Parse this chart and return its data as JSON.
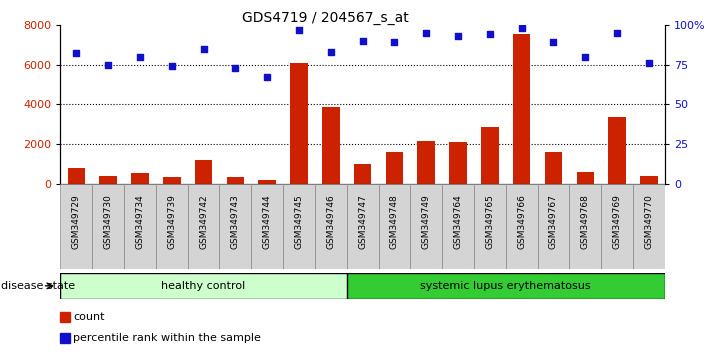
{
  "title": "GDS4719 / 204567_s_at",
  "samples": [
    "GSM349729",
    "GSM349730",
    "GSM349734",
    "GSM349739",
    "GSM349742",
    "GSM349743",
    "GSM349744",
    "GSM349745",
    "GSM349746",
    "GSM349747",
    "GSM349748",
    "GSM349749",
    "GSM349764",
    "GSM349765",
    "GSM349766",
    "GSM349767",
    "GSM349768",
    "GSM349769",
    "GSM349770"
  ],
  "counts": [
    800,
    400,
    550,
    350,
    1200,
    380,
    200,
    6100,
    3850,
    1000,
    1600,
    2150,
    2100,
    2850,
    7550,
    1600,
    600,
    3380,
    430
  ],
  "percentiles": [
    82,
    75,
    80,
    74,
    85,
    73,
    67,
    97,
    83,
    90,
    89,
    95,
    93,
    94,
    98,
    89,
    80,
    95,
    76
  ],
  "ylim_left": [
    0,
    8000
  ],
  "ylim_right": [
    0,
    100
  ],
  "yticks_left": [
    0,
    2000,
    4000,
    6000,
    8000
  ],
  "yticks_right": [
    0,
    25,
    50,
    75,
    100
  ],
  "ytick_labels_right": [
    "0",
    "25",
    "50",
    "75",
    "100%"
  ],
  "healthy_count": 9,
  "bar_color": "#cc2200",
  "dot_color": "#1010cc",
  "healthy_color_light": "#ccffcc",
  "healthy_color_dark": "#44dd44",
  "sle_color": "#33cc33",
  "healthy_label": "healthy control",
  "sle_label": "systemic lupus erythematosus",
  "disease_state_label": "disease state",
  "legend_count_label": "count",
  "legend_pct_label": "percentile rank within the sample",
  "title_fontsize": 10,
  "tick_label_color_left": "#cc2200",
  "tick_label_color_right": "#1010cc"
}
